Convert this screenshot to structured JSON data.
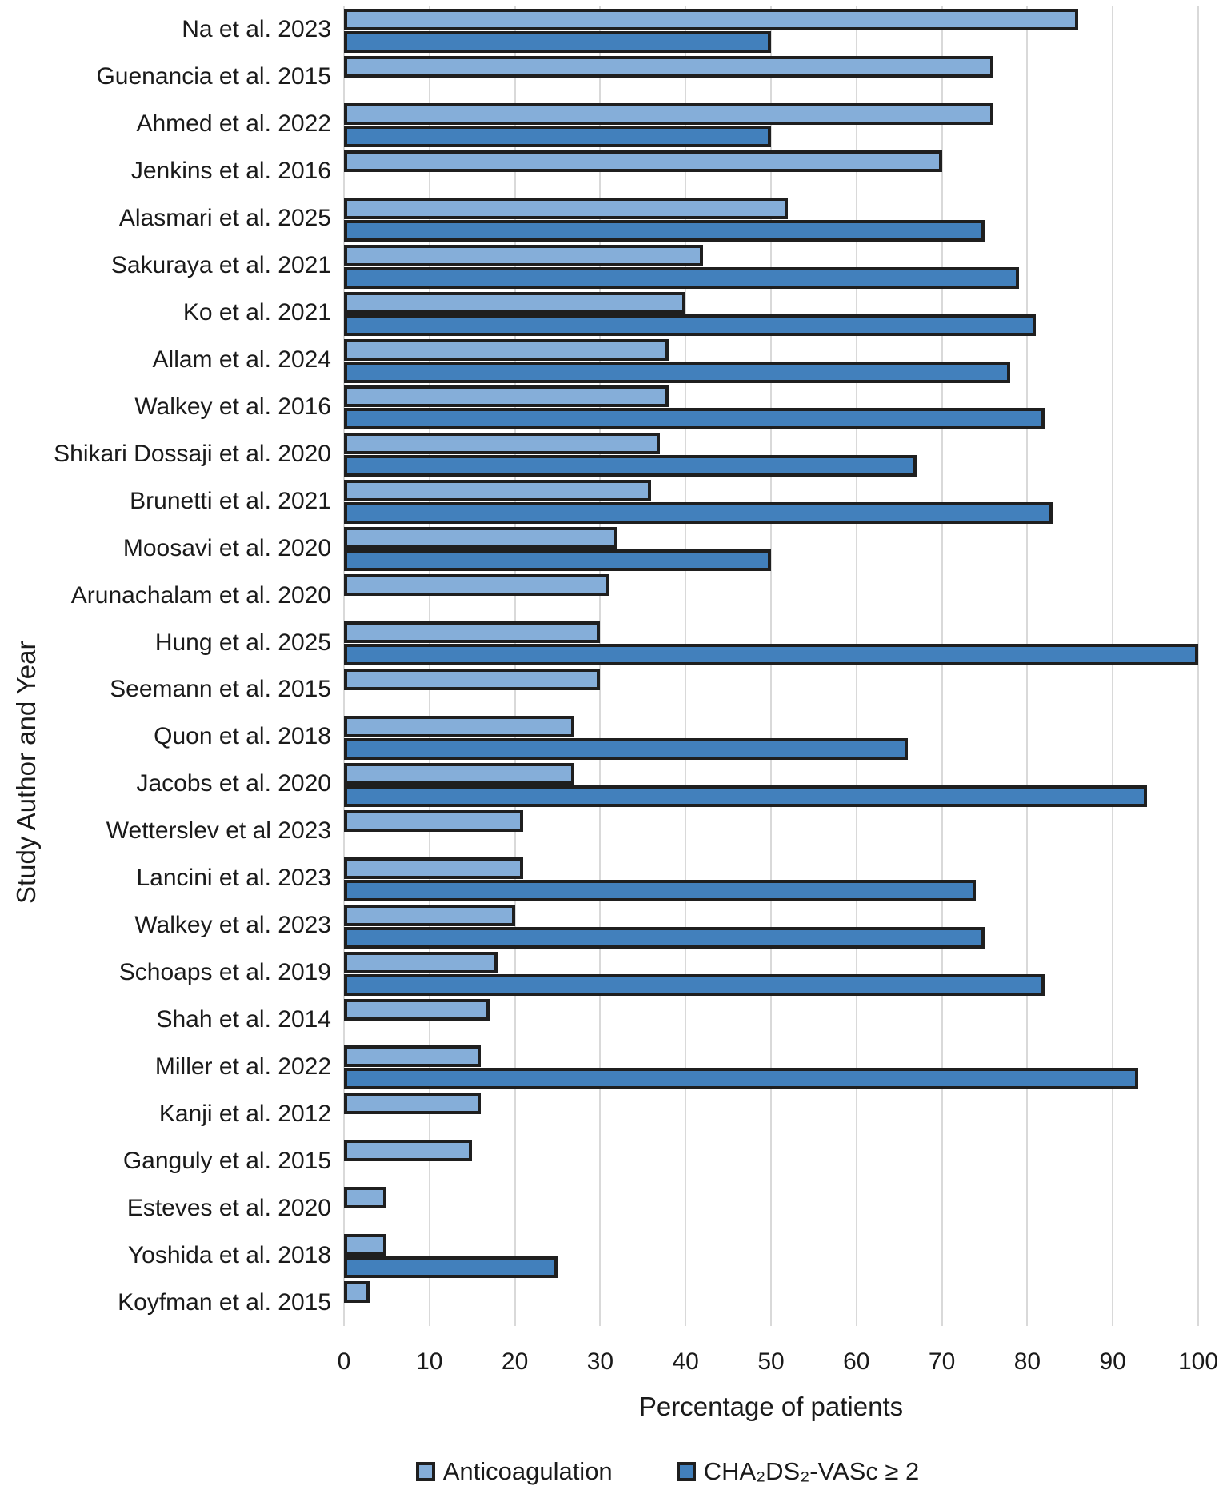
{
  "chart_data": {
    "type": "bar",
    "orientation": "horizontal",
    "title": "",
    "xlabel": "Percentage of patients",
    "ylabel": "Study Author and Year",
    "xlim": [
      0,
      100
    ],
    "xticks": [
      0,
      10,
      20,
      30,
      40,
      50,
      60,
      70,
      80,
      90,
      100
    ],
    "grid": "vertical-gridlines",
    "legend_position": "bottom",
    "categories": [
      "Na et al. 2023",
      "Guenancia et al. 2015",
      "Ahmed et al. 2022",
      "Jenkins et al. 2016",
      "Alasmari et al. 2025",
      "Sakuraya et al. 2021",
      "Ko et al. 2021",
      "Allam et al. 2024",
      "Walkey et al. 2016",
      "Shikari Dossaji et al. 2020",
      "Brunetti et al. 2021",
      "Moosavi et al. 2020",
      "Arunachalam et al. 2020",
      "Hung et al. 2025",
      "Seemann et al. 2015",
      "Quon et al. 2018",
      "Jacobs et al. 2020",
      "Wetterslev et al 2023",
      "Lancini et al. 2023",
      "Walkey et al. 2023",
      "Schoaps et al. 2019",
      "Shah et al. 2014",
      "Miller et al. 2022",
      "Kanji et al. 2012",
      "Ganguly et al. 2015",
      "Esteves et al. 2020",
      "Yoshida et al. 2018",
      "Koyfman et al. 2015"
    ],
    "series": [
      {
        "name": "Anticoagulation",
        "color": "#85AED9",
        "values": [
          86,
          76,
          76,
          70,
          52,
          42,
          40,
          38,
          38,
          37,
          36,
          32,
          31,
          30,
          30,
          27,
          27,
          21,
          21,
          20,
          18,
          17,
          16,
          16,
          15,
          5,
          5,
          3
        ]
      },
      {
        "name": "CHA₂DS₂-VASc ≥ 2",
        "color": "#4280BC",
        "values": [
          50,
          null,
          50,
          null,
          75,
          79,
          81,
          78,
          82,
          67,
          83,
          50,
          null,
          100,
          null,
          66,
          94,
          null,
          74,
          75,
          82,
          null,
          93,
          null,
          null,
          null,
          25,
          null
        ]
      }
    ],
    "style": {
      "bar_border_color": "#1F1F1F",
      "gridline_color": "#D9D9D9",
      "text_color": "#1A1A1A",
      "background": "#FFFFFF"
    }
  }
}
